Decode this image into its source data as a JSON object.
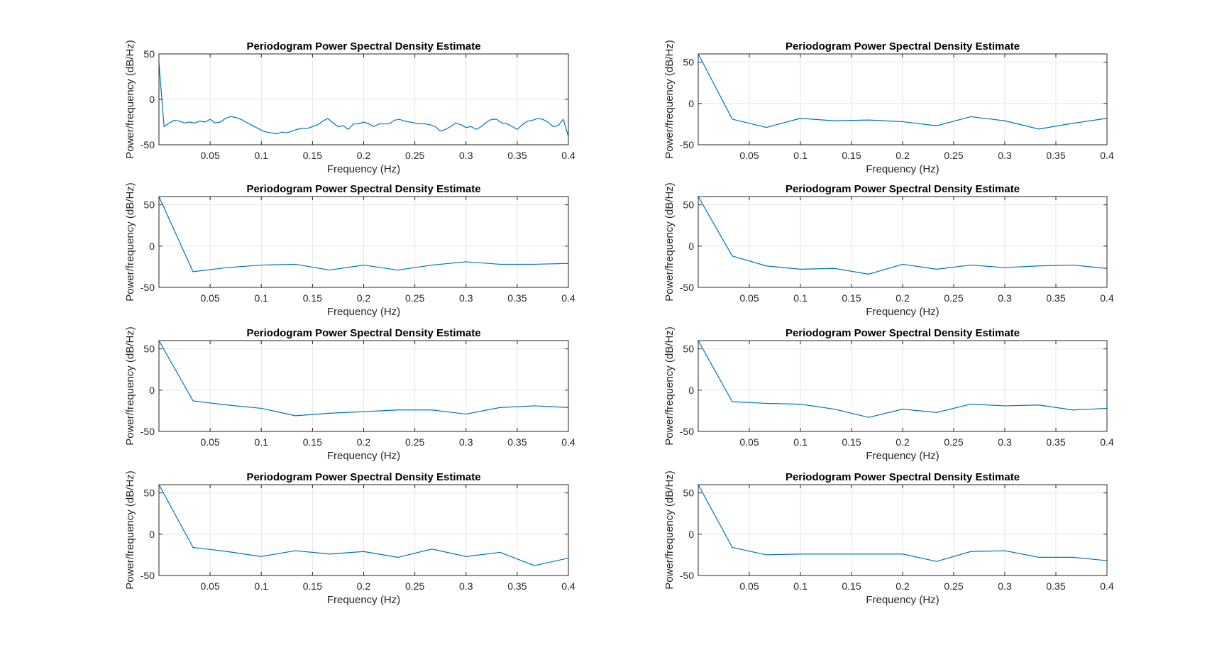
{
  "chart_data": [
    {
      "type": "line",
      "title": "Periodogram Power Spectral Density Estimate",
      "xlabel": "Frequency (Hz)",
      "ylabel": "Power/frequency (dB/Hz)",
      "xlim": [
        0,
        0.4
      ],
      "ylim": [
        -50,
        50
      ],
      "xticks": [
        "0.05",
        "0.1",
        "0.15",
        "0.2",
        "0.25",
        "0.3",
        "0.35",
        "0.4"
      ],
      "yticks": [
        "50",
        "0",
        "-50"
      ],
      "grid": true,
      "color": "#0072BD",
      "series": [
        {
          "x": [
            0,
            0.005,
            0.01,
            0.015,
            0.02,
            0.025,
            0.03,
            0.035,
            0.04,
            0.045,
            0.05,
            0.055,
            0.06,
            0.065,
            0.07,
            0.075,
            0.08,
            0.085,
            0.09,
            0.095,
            0.1,
            0.105,
            0.11,
            0.115,
            0.12,
            0.125,
            0.13,
            0.135,
            0.14,
            0.145,
            0.15,
            0.155,
            0.16,
            0.165,
            0.17,
            0.175,
            0.18,
            0.185,
            0.19,
            0.195,
            0.2,
            0.205,
            0.21,
            0.215,
            0.22,
            0.225,
            0.23,
            0.235,
            0.24,
            0.245,
            0.25,
            0.255,
            0.26,
            0.265,
            0.27,
            0.275,
            0.28,
            0.285,
            0.29,
            0.295,
            0.3,
            0.305,
            0.31,
            0.315,
            0.32,
            0.325,
            0.33,
            0.335,
            0.34,
            0.345,
            0.35,
            0.355,
            0.36,
            0.365,
            0.37,
            0.375,
            0.38,
            0.385,
            0.39,
            0.395,
            0.4
          ],
          "y": [
            40,
            -30,
            -26,
            -23,
            -24,
            -26,
            -25,
            -26,
            -24,
            -25,
            -22,
            -26,
            -25,
            -21,
            -19,
            -20,
            -22,
            -25,
            -28,
            -31,
            -34,
            -36,
            -37,
            -38,
            -36,
            -37,
            -35,
            -33,
            -32,
            -32,
            -30,
            -28,
            -24,
            -21,
            -26,
            -30,
            -29,
            -33,
            -27,
            -27,
            -25,
            -27,
            -30,
            -27,
            -27,
            -27,
            -23,
            -22,
            -24,
            -25,
            -26,
            -27,
            -27,
            -28,
            -30,
            -35,
            -33,
            -30,
            -26,
            -28,
            -31,
            -30,
            -33,
            -30,
            -25,
            -22,
            -22,
            -26,
            -27,
            -30,
            -33,
            -28,
            -24,
            -23,
            -21,
            -22,
            -25,
            -30,
            -29,
            -22,
            -41
          ]
        }
      ]
    },
    {
      "type": "line",
      "title": "Periodogram Power Spectral Density Estimate",
      "xlabel": "Frequency (Hz)",
      "ylabel": "Power/frequency (dB/Hz)",
      "xlim": [
        0,
        0.4
      ],
      "ylim": [
        -50,
        60
      ],
      "xticks": [
        "0.05",
        "0.1",
        "0.15",
        "0.2",
        "0.25",
        "0.3",
        "0.35",
        "0.4"
      ],
      "yticks": [
        "50",
        "0",
        "-50"
      ],
      "grid": true,
      "color": "#0072BD",
      "series": [
        {
          "x": [
            0,
            0.0333,
            0.0667,
            0.1,
            0.1333,
            0.1667,
            0.2,
            0.2333,
            0.2667,
            0.3,
            0.3333,
            0.3667,
            0.4
          ],
          "y": [
            60,
            -19,
            -29,
            -18,
            -21,
            -20,
            -22,
            -27,
            -16,
            -21,
            -31,
            -24,
            -18
          ]
        }
      ]
    },
    {
      "type": "line",
      "title": "Periodogram Power Spectral Density Estimate",
      "xlabel": "Frequency (Hz)",
      "ylabel": "Power/frequency (dB/Hz)",
      "xlim": [
        0,
        0.4
      ],
      "ylim": [
        -50,
        60
      ],
      "xticks": [
        "0.05",
        "0.1",
        "0.15",
        "0.2",
        "0.25",
        "0.3",
        "0.35",
        "0.4"
      ],
      "yticks": [
        "50",
        "0",
        "-50"
      ],
      "grid": true,
      "color": "#0072BD",
      "series": [
        {
          "x": [
            0,
            0.0333,
            0.0667,
            0.1,
            0.1333,
            0.1667,
            0.2,
            0.2333,
            0.2667,
            0.3,
            0.3333,
            0.3667,
            0.4
          ],
          "y": [
            60,
            -31,
            -26,
            -23,
            -22,
            -29,
            -23,
            -29,
            -23,
            -19,
            -22,
            -22,
            -21
          ]
        }
      ]
    },
    {
      "type": "line",
      "title": "Periodogram Power Spectral Density Estimate",
      "xlabel": "Frequency (Hz)",
      "ylabel": "Power/frequency (dB/Hz)",
      "xlim": [
        0,
        0.4
      ],
      "ylim": [
        -50,
        60
      ],
      "xticks": [
        "0.05",
        "0.1",
        "0.15",
        "0.2",
        "0.25",
        "0.3",
        "0.35",
        "0.4"
      ],
      "yticks": [
        "50",
        "0",
        "-50"
      ],
      "grid": true,
      "color": "#0072BD",
      "series": [
        {
          "x": [
            0,
            0.0333,
            0.0667,
            0.1,
            0.1333,
            0.1667,
            0.2,
            0.2333,
            0.2667,
            0.3,
            0.3333,
            0.3667,
            0.4
          ],
          "y": [
            60,
            -12,
            -24,
            -28,
            -27,
            -34,
            -22,
            -28,
            -23,
            -26,
            -24,
            -23,
            -27
          ]
        }
      ]
    },
    {
      "type": "line",
      "title": "Periodogram Power Spectral Density Estimate",
      "xlabel": "Frequency (Hz)",
      "ylabel": "Power/frequency (dB/Hz)",
      "xlim": [
        0,
        0.4
      ],
      "ylim": [
        -50,
        60
      ],
      "xticks": [
        "0.05",
        "0.1",
        "0.15",
        "0.2",
        "0.25",
        "0.3",
        "0.35",
        "0.4"
      ],
      "yticks": [
        "50",
        "0",
        "-50"
      ],
      "grid": true,
      "color": "#0072BD",
      "series": [
        {
          "x": [
            0,
            0.0333,
            0.0667,
            0.1,
            0.1333,
            0.1667,
            0.2,
            0.2333,
            0.2667,
            0.3,
            0.3333,
            0.3667,
            0.4
          ],
          "y": [
            60,
            -13,
            -18,
            -22,
            -31,
            -28,
            -26,
            -24,
            -24,
            -29,
            -21,
            -19,
            -21
          ]
        }
      ]
    },
    {
      "type": "line",
      "title": "Periodogram Power Spectral Density Estimate",
      "xlabel": "Frequency (Hz)",
      "ylabel": "Power/frequency (dB/Hz)",
      "xlim": [
        0,
        0.4
      ],
      "ylim": [
        -50,
        60
      ],
      "xticks": [
        "0.05",
        "0.1",
        "0.15",
        "0.2",
        "0.25",
        "0.3",
        "0.35",
        "0.4"
      ],
      "yticks": [
        "50",
        "0",
        "-50"
      ],
      "grid": true,
      "color": "#0072BD",
      "series": [
        {
          "x": [
            0,
            0.0333,
            0.0667,
            0.1,
            0.1333,
            0.1667,
            0.2,
            0.2333,
            0.2667,
            0.3,
            0.3333,
            0.3667,
            0.4
          ],
          "y": [
            60,
            -14,
            -16,
            -17,
            -23,
            -33,
            -23,
            -27,
            -17,
            -19,
            -18,
            -24,
            -22
          ]
        }
      ]
    },
    {
      "type": "line",
      "title": "Periodogram Power Spectral Density Estimate",
      "xlabel": "Frequency (Hz)",
      "ylabel": "Power/frequency (dB/Hz)",
      "xlim": [
        0,
        0.4
      ],
      "ylim": [
        -50,
        60
      ],
      "xticks": [
        "0.05",
        "0.1",
        "0.15",
        "0.2",
        "0.25",
        "0.3",
        "0.35",
        "0.4"
      ],
      "yticks": [
        "50",
        "0",
        "-50"
      ],
      "grid": true,
      "color": "#0072BD",
      "series": [
        {
          "x": [
            0,
            0.0333,
            0.0667,
            0.1,
            0.1333,
            0.1667,
            0.2,
            0.2333,
            0.2667,
            0.3,
            0.3333,
            0.3667,
            0.4
          ],
          "y": [
            60,
            -16,
            -21,
            -27,
            -20,
            -24,
            -21,
            -28,
            -18,
            -27,
            -22,
            -38,
            -29
          ]
        }
      ]
    },
    {
      "type": "line",
      "title": "Periodogram Power Spectral Density Estimate",
      "xlabel": "Frequency (Hz)",
      "ylabel": "Power/frequency (dB/Hz)",
      "xlim": [
        0,
        0.4
      ],
      "ylim": [
        -50,
        60
      ],
      "xticks": [
        "0.05",
        "0.1",
        "0.15",
        "0.2",
        "0.25",
        "0.3",
        "0.35",
        "0.4"
      ],
      "yticks": [
        "50",
        "0",
        "-50"
      ],
      "grid": true,
      "color": "#0072BD",
      "series": [
        {
          "x": [
            0,
            0.0333,
            0.0667,
            0.1,
            0.1333,
            0.1667,
            0.2,
            0.2333,
            0.2667,
            0.3,
            0.3333,
            0.3667,
            0.4
          ],
          "y": [
            60,
            -16,
            -25,
            -24,
            -24,
            -24,
            -24,
            -33,
            -21,
            -20,
            -28,
            -28,
            -32
          ]
        }
      ]
    }
  ]
}
